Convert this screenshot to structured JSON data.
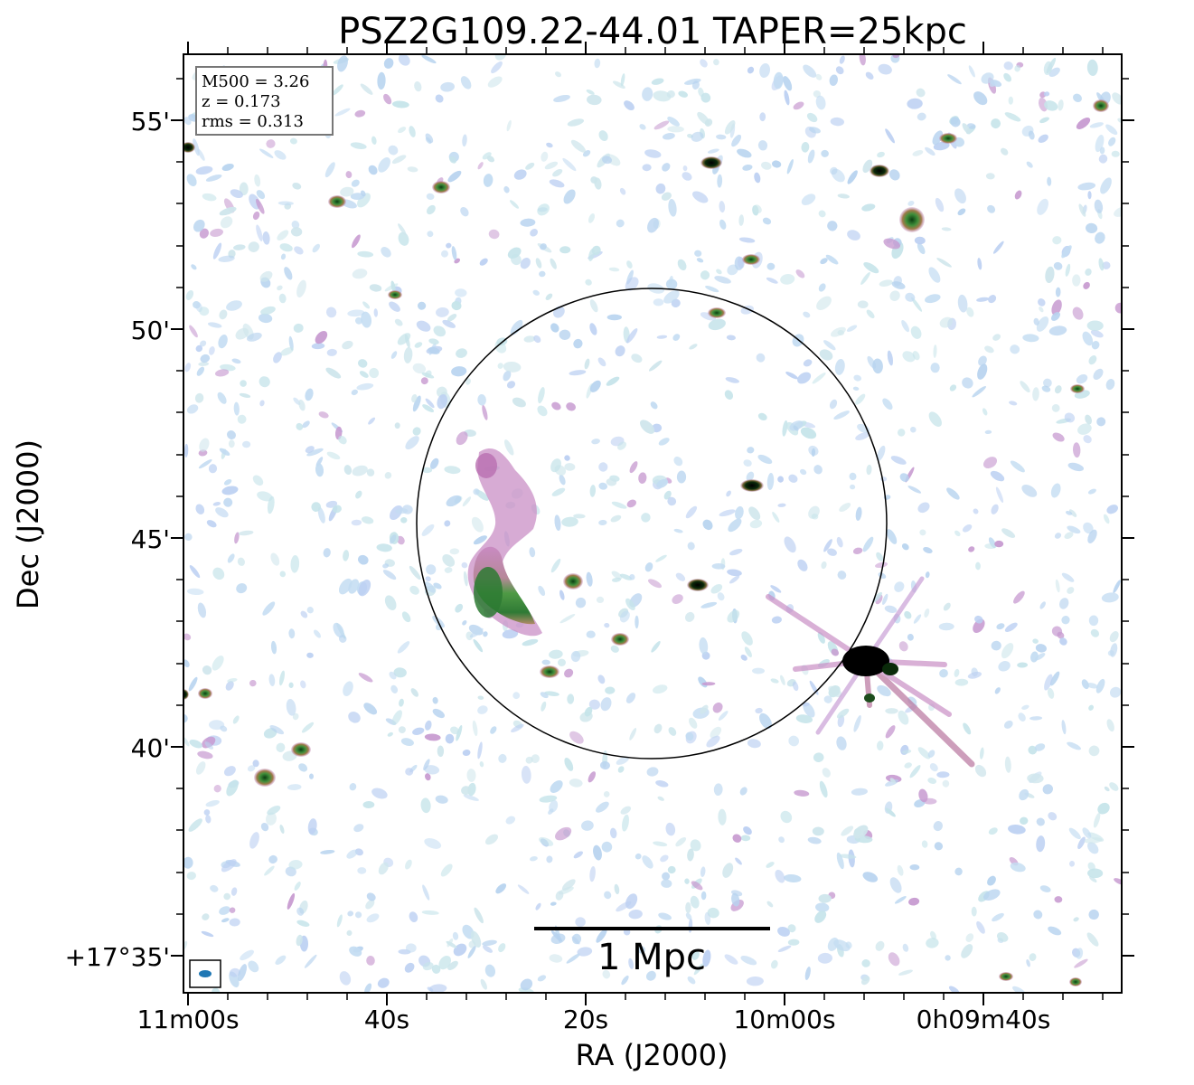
{
  "title": "PSZ2G109.22-44.01 TAPER=25kpc",
  "info_box": {
    "m500": "M500 = 3.26",
    "z": "z = 0.173",
    "rms": "rms = 0.313"
  },
  "scale_bar": {
    "label": "1 Mpc"
  },
  "axes": {
    "xlabel": "RA (J2000)",
    "ylabel": "Dec (J2000)",
    "x_ticks": [
      "11m00s",
      "40s",
      "20s",
      "10m00s",
      "0h09m40s"
    ],
    "y_ticks": [
      "55'",
      "50'",
      "45'",
      "40'",
      "+17°35'"
    ]
  },
  "colors": {
    "frame": "#000000",
    "beam": "#1f77b4",
    "map_low": "#bcd8f0",
    "map_mid": "#c78bc4",
    "map_high": "#2e7d32",
    "map_peak": "#000000"
  }
}
